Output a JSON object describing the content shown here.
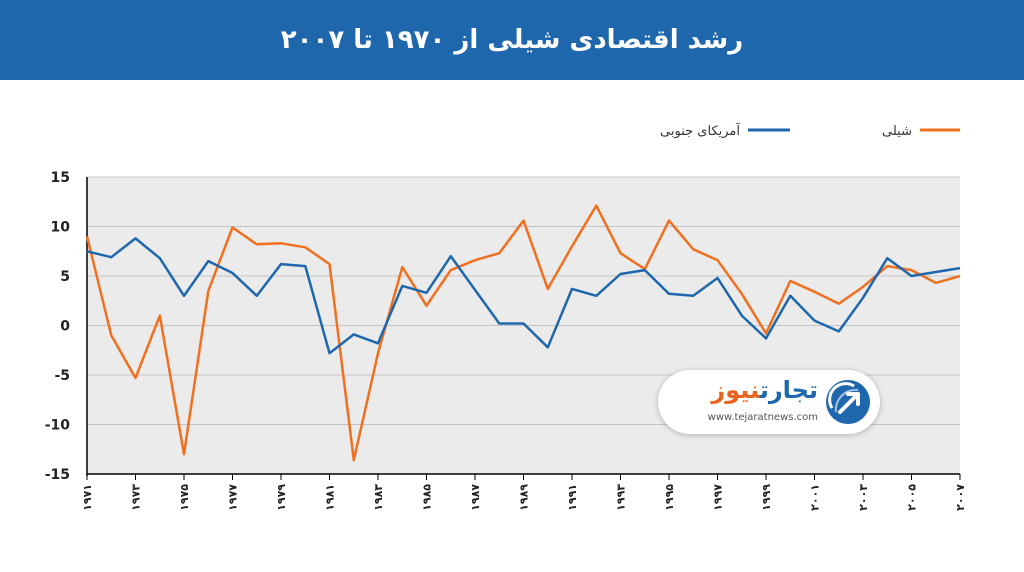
{
  "header": {
    "title": "رشد اقتصادی شیلی از ۱۹۷۰ تا ۲۰۰۷"
  },
  "watermark": {
    "brand_part1": "تجارت",
    "brand_part2": "نیوز",
    "url": "www.tejaratnews.com",
    "icon": "tejaratnews-logo-icon"
  },
  "colors": {
    "header": "#1f67ad",
    "chile": "#f07020",
    "south_america": "#1f67ad",
    "plot_bg": "#ebebeb"
  },
  "chart_data": {
    "type": "line",
    "title": "رشد اقتصادی شیلی از ۱۹۷۰ تا ۲۰۰۷",
    "ylim": [
      -15,
      15
    ],
    "y_ticks": [
      {
        "value": 15,
        "label": "15"
      },
      {
        "value": 10,
        "label": "10"
      },
      {
        "value": 5,
        "label": "5"
      },
      {
        "value": 0,
        "label": "0"
      },
      {
        "value": -5,
        "label": "-5"
      },
      {
        "value": -10,
        "label": "-10"
      },
      {
        "value": -15,
        "label": "-15"
      }
    ],
    "x_ticks": [
      "۱۹۷۱",
      "۱۹۷۳",
      "۱۹۷۵",
      "۱۹۷۷",
      "۱۹۷۹",
      "۱۹۸۱",
      "۱۹۸۳",
      "۱۹۸۵",
      "۱۹۸۷",
      "۱۹۸۹",
      "۱۹۹۱",
      "۱۹۹۳",
      "۱۹۹۵",
      "۱۹۹۷",
      "۱۹۹۹",
      "۲۰۰۱",
      "۲۰۰۳",
      "۲۰۰۵",
      "۲۰۰۷"
    ],
    "x": [
      1971,
      1972,
      1973,
      1974,
      1975,
      1976,
      1977,
      1978,
      1979,
      1980,
      1981,
      1982,
      1983,
      1984,
      1985,
      1986,
      1987,
      1988,
      1989,
      1990,
      1991,
      1992,
      1993,
      1994,
      1995,
      1996,
      1997,
      1998,
      1999,
      2000,
      2001,
      2002,
      2003,
      2004,
      2005,
      2006,
      2007
    ],
    "legend_position": "top-right",
    "grid": true,
    "series": [
      {
        "name": "شیلی",
        "color": "#f07020",
        "values": [
          9.0,
          -1.0,
          -5.3,
          1.0,
          -13.0,
          3.5,
          9.9,
          8.2,
          8.3,
          7.9,
          6.2,
          -13.6,
          -2.8,
          5.9,
          2.0,
          5.6,
          6.6,
          7.3,
          10.6,
          3.7,
          8.0,
          12.1,
          7.3,
          5.7,
          10.6,
          7.7,
          6.6,
          3.2,
          -0.8,
          4.5,
          3.4,
          2.2,
          3.9,
          6.0,
          5.6,
          4.3,
          5.0
        ]
      },
      {
        "name": "آمریکای جنوبی",
        "color": "#1f67ad",
        "values": [
          7.5,
          6.9,
          8.8,
          6.8,
          3.0,
          6.5,
          5.3,
          3.0,
          6.2,
          6.0,
          -2.8,
          -0.9,
          -1.8,
          4.0,
          3.3,
          7.0,
          3.6,
          0.2,
          0.2,
          -2.2,
          3.7,
          3.0,
          5.2,
          5.6,
          3.2,
          3.0,
          4.8,
          1.0,
          -1.3,
          3.0,
          0.5,
          -0.6,
          2.8,
          6.8,
          5.0,
          5.4,
          5.8
        ]
      }
    ]
  }
}
